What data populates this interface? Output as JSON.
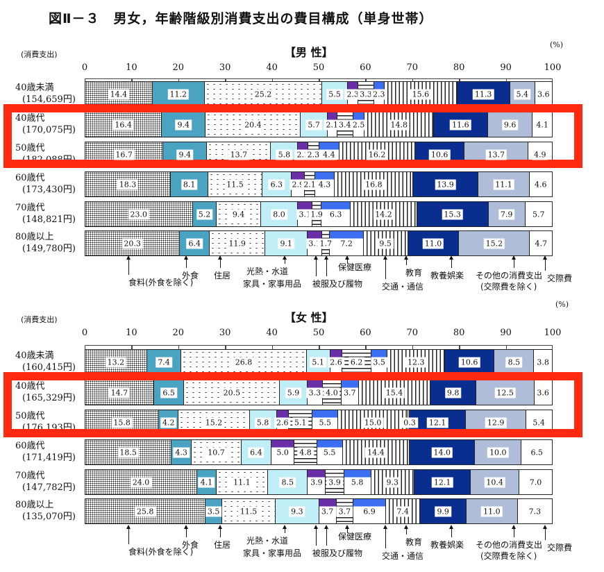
{
  "title": "図Ⅱ－３　男女，年齢階級別消費支出の費目構成（単身世帯）",
  "unit_left": "(消費支出)",
  "unit_right": "(%)",
  "axis_ticks": [
    "0",
    "10",
    "20",
    "30",
    "40",
    "50",
    "60",
    "70",
    "80",
    "90",
    "100"
  ],
  "categories": [
    "食料(外食を除く)",
    "外食",
    "住居",
    "光熱・水道",
    "家具・家事用品",
    "被服及び履物",
    "保健医療",
    "交通・通信",
    "教育",
    "教養娯楽",
    "その他の消費支出(交際費を除く)",
    "交際費"
  ],
  "legend": {
    "food": "食料(外食を除く)",
    "eating_out": "外食",
    "housing": "住居",
    "utilities": "光熱・水道",
    "furniture": "家具・家事用品",
    "clothing": "被服及び履物",
    "medical": "保健医療",
    "transport": "交通・通信",
    "education": "教育",
    "culture": "教養娯楽",
    "other_1": "その他の消費支出",
    "other_2": "(交際費を除く)",
    "social": "交際費"
  },
  "colors": {
    "highlight": "#ff2a10",
    "eating_out": "#4aa3c0",
    "utilities": "#bfeef7",
    "furniture": "#6a2fa6",
    "medical": "#3b6ef0",
    "other": "#0a2e8f",
    "social": "#b0bdd8"
  },
  "chart_data": [
    {
      "type": "bar",
      "stacked": true,
      "orientation": "horizontal",
      "title": "【男 性】",
      "xlabel": "",
      "ylabel": "(消費支出)",
      "xlim": [
        0,
        100
      ],
      "unit": "%",
      "categories": [
        "40歳未満 (154,659円)",
        "40歳代 (170,075円)",
        "50歳代 (182,088円)",
        "60歳代 (173,430円)",
        "70歳代 (148,821円)",
        "80歳以上 (149,780円)"
      ],
      "rows": [
        {
          "age": "40歳未満",
          "amount": "(154,659円)",
          "values": [
            "14.4",
            "11.2",
            "25.2",
            "5.5",
            "2.3",
            "3.3",
            "2.3",
            "15.6",
            "0.0",
            "11.3",
            "5.4",
            "3.6"
          ]
        },
        {
          "age": "40歳代",
          "amount": "(170,075円)",
          "values": [
            "16.4",
            "9.4",
            "20.4",
            "5.7",
            "2.1",
            "3.4",
            "2.5",
            "14.8",
            "0.0",
            "11.6",
            "9.6",
            "4.1"
          ]
        },
        {
          "age": "50歳代",
          "amount": "(182,088円)",
          "values": [
            "16.7",
            "9.4",
            "13.7",
            "5.8",
            "2.2",
            "2.3",
            "4.4",
            "16.2",
            "0.0",
            "10.6",
            "13.7",
            "4.9"
          ]
        },
        {
          "age": "60歳代",
          "amount": "(173,430円)",
          "values": [
            "18.3",
            "8.1",
            "11.5",
            "6.3",
            "2.9",
            "2.1",
            "4.3",
            "16.8",
            "0.0",
            "13.9",
            "11.1",
            "4.6"
          ]
        },
        {
          "age": "70歳代",
          "amount": "(148,821円)",
          "values": [
            "23.0",
            "5.2",
            "9.4",
            "8.0",
            "3.1",
            "1.9",
            "6.3",
            "14.2",
            "0.0",
            "15.3",
            "7.9",
            "5.7"
          ]
        },
        {
          "age": "80歳以上",
          "amount": "(149,780円)",
          "values": [
            "20.3",
            "6.4",
            "11.9",
            "9.1",
            "3.1",
            "1.7",
            "7.2",
            "9.5",
            "0.0",
            "11.0",
            "15.2",
            "4.7"
          ]
        }
      ],
      "series": [
        {
          "name": "食料(外食を除く)",
          "values": [
            14.4,
            16.4,
            16.7,
            18.3,
            23.0,
            20.3
          ]
        },
        {
          "name": "外食",
          "values": [
            11.2,
            9.4,
            9.4,
            8.1,
            5.2,
            6.4
          ]
        },
        {
          "name": "住居",
          "values": [
            25.2,
            20.4,
            13.7,
            11.5,
            9.4,
            11.9
          ]
        },
        {
          "name": "光熱・水道",
          "values": [
            5.5,
            5.7,
            5.8,
            6.3,
            8.0,
            9.1
          ]
        },
        {
          "name": "家具・家事用品",
          "values": [
            2.3,
            2.1,
            2.2,
            2.9,
            3.1,
            3.1
          ]
        },
        {
          "name": "被服及び履物",
          "values": [
            3.3,
            3.4,
            2.3,
            2.1,
            1.9,
            1.7
          ]
        },
        {
          "name": "保健医療",
          "values": [
            2.3,
            2.5,
            4.4,
            4.3,
            6.3,
            7.2
          ]
        },
        {
          "name": "交通・通信",
          "values": [
            15.6,
            14.8,
            16.2,
            16.8,
            14.2,
            9.5
          ]
        },
        {
          "name": "教育",
          "values": [
            0.0,
            0.0,
            0.0,
            0.0,
            0.0,
            0.0
          ]
        },
        {
          "name": "教養娯楽",
          "values": [
            11.3,
            11.6,
            10.6,
            13.9,
            15.3,
            11.0
          ]
        },
        {
          "name": "その他の消費支出(交際費を除く)",
          "values": [
            5.4,
            9.6,
            13.7,
            11.1,
            7.9,
            15.2
          ]
        },
        {
          "name": "交際費",
          "values": [
            3.6,
            4.1,
            4.9,
            4.6,
            5.7,
            4.7
          ]
        }
      ],
      "highlighted_rows": [
        "40歳代",
        "50歳代"
      ]
    },
    {
      "type": "bar",
      "stacked": true,
      "orientation": "horizontal",
      "title": "【女 性】",
      "xlabel": "",
      "ylabel": "(消費支出)",
      "xlim": [
        0,
        100
      ],
      "unit": "%",
      "categories": [
        "40歳未満 (160,415円)",
        "40歳代 (165,329円)",
        "50歳代 (176,193円)",
        "60歳代 (171,419円)",
        "70歳代 (147,782円)",
        "80歳以上 (135,070円)"
      ],
      "rows": [
        {
          "age": "40歳未満",
          "amount": "(160,415円)",
          "values": [
            "13.2",
            "7.4",
            "26.8",
            "5.1",
            "2.6",
            "6.2",
            "3.5",
            "12.3",
            "0.0",
            "10.6",
            "8.5",
            "3.8"
          ]
        },
        {
          "age": "40歳代",
          "amount": "(165,329円)",
          "values": [
            "14.7",
            "6.5",
            "20.5",
            "5.9",
            "3.3",
            "4.0",
            "3.7",
            "15.4",
            "0.0",
            "9.8",
            "12.5",
            "3.6"
          ]
        },
        {
          "age": "50歳代",
          "amount": "(176,193円)",
          "values": [
            "15.8",
            "4.2",
            "15.2",
            "5.8",
            "2.6",
            "5.1",
            "5.5",
            "15.0",
            "0.3",
            "12.1",
            "12.9",
            "5.4"
          ]
        },
        {
          "age": "60歳代",
          "amount": "(171,419円)",
          "values": [
            "18.5",
            "4.3",
            "10.7",
            "6.4",
            "5.0",
            "4.8",
            "5.5",
            "14.4",
            "0.0",
            "14.0",
            "10.0",
            "6.5"
          ]
        },
        {
          "age": "70歳代",
          "amount": "(147,782円)",
          "values": [
            "24.0",
            "4.1",
            "11.1",
            "8.5",
            "3.9",
            "3.9",
            "5.8",
            "9.3",
            "0.0",
            "12.1",
            "10.4",
            "7.0"
          ]
        },
        {
          "age": "80歳以上",
          "amount": "(135,070円)",
          "values": [
            "25.8",
            "3.5",
            "11.5",
            "9.3",
            "3.7",
            "3.7",
            "6.9",
            "7.4",
            "0.0",
            "9.9",
            "11.0",
            "7.3"
          ]
        }
      ],
      "series": [
        {
          "name": "食料(外食を除く)",
          "values": [
            13.2,
            14.7,
            15.8,
            18.5,
            24.0,
            25.8
          ]
        },
        {
          "name": "外食",
          "values": [
            7.4,
            6.5,
            4.2,
            4.3,
            4.1,
            3.5
          ]
        },
        {
          "name": "住居",
          "values": [
            26.8,
            20.5,
            15.2,
            10.7,
            11.1,
            11.5
          ]
        },
        {
          "name": "光熱・水道",
          "values": [
            5.1,
            5.9,
            5.8,
            6.4,
            8.5,
            9.3
          ]
        },
        {
          "name": "家具・家事用品",
          "values": [
            2.6,
            3.3,
            2.6,
            5.0,
            3.9,
            3.7
          ]
        },
        {
          "name": "被服及び履物",
          "values": [
            6.2,
            4.0,
            5.1,
            4.8,
            3.9,
            3.7
          ]
        },
        {
          "name": "保健医療",
          "values": [
            3.5,
            3.7,
            5.5,
            5.5,
            5.8,
            6.9
          ]
        },
        {
          "name": "交通・通信",
          "values": [
            12.3,
            15.4,
            15.0,
            14.4,
            9.3,
            7.4
          ]
        },
        {
          "name": "教育",
          "values": [
            0.0,
            0.0,
            0.3,
            0.0,
            0.0,
            0.0
          ]
        },
        {
          "name": "教養娯楽",
          "values": [
            10.6,
            9.8,
            12.1,
            14.0,
            12.1,
            9.9
          ]
        },
        {
          "name": "その他の消費支出(交際費を除く)",
          "values": [
            8.5,
            12.5,
            12.9,
            10.0,
            10.4,
            11.0
          ]
        },
        {
          "name": "交際費",
          "values": [
            3.8,
            3.6,
            5.4,
            6.5,
            7.0,
            7.3
          ]
        }
      ],
      "highlighted_rows": [
        "40歳代",
        "50歳代"
      ]
    }
  ]
}
